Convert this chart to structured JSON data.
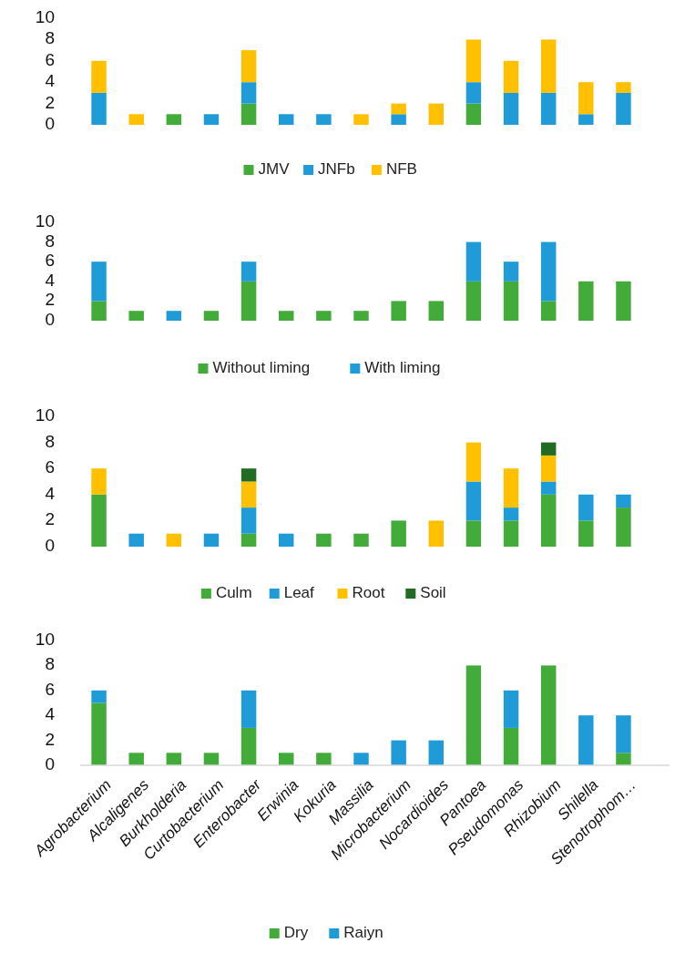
{
  "chart_data": [
    {
      "type": "bar",
      "stacked": true,
      "legend": "bottom",
      "tick_labels": "y",
      "categories": [
        null,
        null,
        null,
        null,
        null,
        null,
        null,
        null,
        null,
        null,
        null,
        null,
        null,
        null,
        null
      ],
      "ylim": [
        0,
        10
      ],
      "yticks": [
        0,
        2,
        4,
        6,
        8,
        10
      ],
      "series": [
        {
          "name": "JMV",
          "color": "#43ab3a",
          "values": [
            0,
            0,
            1,
            0,
            2,
            0,
            0,
            0,
            0,
            0,
            2,
            0,
            0,
            0,
            0
          ]
        },
        {
          "name": "JNFb",
          "color": "#1f9bd7",
          "values": [
            3,
            0,
            0,
            1,
            2,
            1,
            1,
            0,
            1,
            0,
            2,
            3,
            3,
            1,
            3
          ]
        },
        {
          "name": "NFB",
          "color": "#ffc000",
          "values": [
            3,
            1,
            0,
            0,
            3,
            0,
            0,
            1,
            1,
            2,
            4,
            3,
            5,
            3,
            1
          ]
        }
      ]
    },
    {
      "type": "bar",
      "stacked": true,
      "legend": "bottom",
      "tick_labels": "y",
      "categories": [
        null,
        null,
        null,
        null,
        null,
        null,
        null,
        null,
        null,
        null,
        null,
        null,
        null,
        null,
        null
      ],
      "ylim": [
        0,
        10
      ],
      "yticks": [
        0,
        2,
        4,
        6,
        8,
        10
      ],
      "series": [
        {
          "name": "Without liming",
          "color": "#43ab3a",
          "values": [
            2,
            1,
            0,
            1,
            4,
            1,
            1,
            1,
            2,
            2,
            4,
            4,
            2,
            4,
            4
          ]
        },
        {
          "name": "With liming",
          "color": "#1f9bd7",
          "values": [
            4,
            0,
            1,
            0,
            2,
            0,
            0,
            0,
            0,
            0,
            4,
            2,
            6,
            0,
            0
          ]
        }
      ]
    },
    {
      "type": "bar",
      "stacked": true,
      "legend": "bottom",
      "tick_labels": "y",
      "categories": [
        null,
        null,
        null,
        null,
        null,
        null,
        null,
        null,
        null,
        null,
        null,
        null,
        null,
        null,
        null
      ],
      "ylim": [
        0,
        10
      ],
      "yticks": [
        0,
        2,
        4,
        6,
        8,
        10
      ],
      "series": [
        {
          "name": "Culm",
          "color": "#43ab3a",
          "values": [
            4,
            0,
            0,
            0,
            1,
            0,
            1,
            1,
            2,
            0,
            2,
            2,
            4,
            2,
            3
          ]
        },
        {
          "name": "Leaf",
          "color": "#1f9bd7",
          "values": [
            0,
            1,
            0,
            1,
            2,
            1,
            0,
            0,
            0,
            0,
            3,
            1,
            1,
            2,
            1
          ]
        },
        {
          "name": "Root",
          "color": "#ffc000",
          "values": [
            2,
            0,
            1,
            0,
            2,
            0,
            0,
            0,
            0,
            2,
            3,
            3,
            2,
            0,
            0
          ]
        },
        {
          "name": "Soil",
          "color": "#226b23",
          "values": [
            0,
            0,
            0,
            0,
            1,
            0,
            0,
            0,
            0,
            0,
            0,
            0,
            1,
            0,
            0
          ]
        }
      ]
    },
    {
      "type": "bar",
      "stacked": true,
      "legend": "bottom",
      "categories": [
        "Agrobacterium",
        "Alcaligenes",
        "Burkholderia",
        "Curtobacterium",
        "Enterobacter",
        "Erwinia",
        "Kokuria",
        "Massilia",
        "Microbacterium",
        "Nocardioides",
        "Pantoea",
        "Pseudomonas",
        "Rhizobium",
        "Shilella",
        "Stenotrophom…"
      ],
      "ylim": [
        0,
        10
      ],
      "yticks": [
        0,
        2,
        4,
        6,
        8,
        10
      ],
      "series": [
        {
          "name": "Dry",
          "color": "#43ab3a",
          "values": [
            5,
            1,
            1,
            1,
            3,
            1,
            1,
            0,
            0,
            0,
            8,
            3,
            8,
            0,
            1
          ]
        },
        {
          "name": "Raiyn",
          "color": "#1f9bd7",
          "values": [
            1,
            0,
            0,
            0,
            3,
            0,
            0,
            1,
            2,
            2,
            0,
            3,
            0,
            4,
            3
          ]
        }
      ]
    }
  ]
}
